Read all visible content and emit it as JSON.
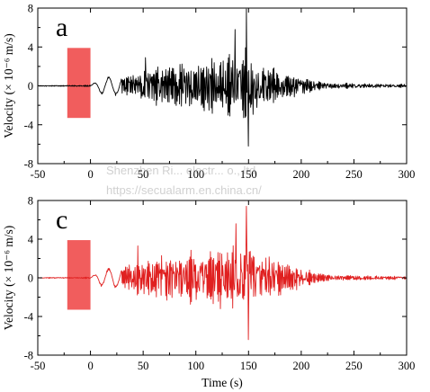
{
  "watermark": {
    "line1": "Shenzhen Ri... electr... o., ltd",
    "line2": "https://secualarm.en.china.cn/"
  },
  "chart_data": [
    {
      "type": "line",
      "panel_label": "a",
      "xlabel": "",
      "ylabel": "Velocity (× 10⁻⁶ m/s)",
      "xlim": [
        -50,
        300
      ],
      "ylim": [
        -8,
        8
      ],
      "xticks": [
        -50,
        0,
        50,
        100,
        150,
        200,
        250,
        300
      ],
      "yticks": [
        -8,
        -4,
        0,
        4,
        8
      ],
      "line_color": "#000000",
      "highlight_box": {
        "x_range": [
          -22,
          0
        ],
        "y_range": [
          -3.3,
          3.9
        ],
        "color": "#ef4b4b"
      },
      "envelope": {
        "t": [
          -50,
          0,
          5,
          10,
          20,
          30,
          40,
          50,
          60,
          70,
          80,
          90,
          100,
          110,
          120,
          130,
          140,
          150,
          160,
          170,
          180,
          190,
          200,
          210,
          220,
          240,
          260,
          280,
          300
        ],
        "amp": [
          0.05,
          0.1,
          0.4,
          0.9,
          1.0,
          1.1,
          1.6,
          2.2,
          2.3,
          2.6,
          2.8,
          3.0,
          3.1,
          3.2,
          3.4,
          3.6,
          4.4,
          5.5,
          3.2,
          2.8,
          2.2,
          1.6,
          1.2,
          0.8,
          0.5,
          0.35,
          0.3,
          0.25,
          0.2
        ]
      },
      "peaks": [
        {
          "t": 148,
          "v": 7.9
        },
        {
          "t": 150,
          "v": -6.2
        },
        {
          "t": 137,
          "v": 5.8
        },
        {
          "t": 52,
          "v": 2.9
        }
      ]
    },
    {
      "type": "line",
      "panel_label": "c",
      "xlabel": "Time (s)",
      "ylabel": "Velocity (× 10⁻⁶ m/s)",
      "xlim": [
        -50,
        300
      ],
      "ylim": [
        -8,
        8
      ],
      "xticks": [
        -50,
        0,
        50,
        100,
        150,
        200,
        250,
        300
      ],
      "yticks": [
        -8,
        -4,
        0,
        4,
        8
      ],
      "line_color": "#e02020",
      "highlight_box": {
        "x_range": [
          -22,
          0
        ],
        "y_range": [
          -3.3,
          3.9
        ],
        "color": "#ef4b4b"
      },
      "envelope": {
        "t": [
          -50,
          0,
          5,
          10,
          20,
          30,
          40,
          50,
          60,
          70,
          80,
          90,
          100,
          110,
          120,
          130,
          140,
          150,
          160,
          170,
          180,
          190,
          200,
          210,
          220,
          240,
          260,
          280,
          300
        ],
        "amp": [
          0.05,
          0.1,
          0.4,
          0.9,
          1.1,
          1.2,
          2.0,
          2.6,
          2.6,
          3.0,
          3.0,
          3.2,
          3.3,
          3.4,
          3.6,
          4.0,
          4.5,
          5.8,
          3.4,
          3.0,
          2.4,
          1.8,
          1.3,
          0.8,
          0.5,
          0.35,
          0.3,
          0.25,
          0.2
        ]
      },
      "peaks": [
        {
          "t": 148,
          "v": 7.4
        },
        {
          "t": 150,
          "v": -6.4
        },
        {
          "t": 45,
          "v": 3.3
        },
        {
          "t": 138,
          "v": 5.6
        }
      ]
    }
  ]
}
